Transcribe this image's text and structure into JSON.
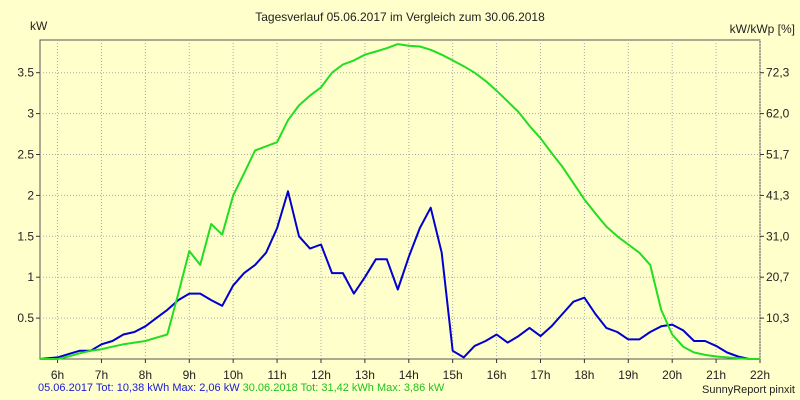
{
  "chart_data": {
    "type": "line",
    "title": "Tagesverlauf 05.06.2017 im Vergleich zum 30.06.2018",
    "ylabel": "kW",
    "ylabel_right": "kW/kWp [%]",
    "x_tick_labels": [
      "6h",
      "7h",
      "8h",
      "9h",
      "10h",
      "11h",
      "12h",
      "13h",
      "14h",
      "15h",
      "16h",
      "17h",
      "18h",
      "19h",
      "20h",
      "21h",
      "22h"
    ],
    "x_ticks": [
      6,
      7,
      8,
      9,
      10,
      11,
      12,
      13,
      14,
      15,
      16,
      17,
      18,
      19,
      20,
      21,
      22
    ],
    "xlim": [
      5.6,
      22.0
    ],
    "ylim": [
      0,
      3.9
    ],
    "y_ticks": [
      0.5,
      1,
      1.5,
      2,
      2.5,
      3,
      3.5
    ],
    "y_tick_labels": [
      "0.5",
      "1",
      "1.5",
      "2",
      "2.5",
      "3",
      "3.5"
    ],
    "y_ticks_right": [
      0.5,
      1,
      1.5,
      2,
      2.5,
      3,
      3.5
    ],
    "y_tick_labels_right": [
      "10,3",
      "20,7",
      "31,0",
      "41,3",
      "51,7",
      "62,0",
      "72,3"
    ],
    "grid": true,
    "series": [
      {
        "color": "#0000d0",
        "x": [
          5.6,
          6.0,
          6.25,
          6.5,
          6.75,
          7.0,
          7.25,
          7.5,
          7.75,
          8.0,
          8.25,
          8.5,
          8.75,
          9.0,
          9.25,
          9.5,
          9.75,
          10.0,
          10.25,
          10.5,
          10.75,
          11.0,
          11.25,
          11.5,
          11.75,
          12.0,
          12.25,
          12.5,
          12.75,
          13.0,
          13.25,
          13.5,
          13.75,
          14.0,
          14.25,
          14.5,
          14.75,
          15.0,
          15.25,
          15.5,
          15.75,
          16.0,
          16.25,
          16.5,
          16.75,
          17.0,
          17.25,
          17.5,
          17.75,
          18.0,
          18.25,
          18.5,
          18.75,
          19.0,
          19.25,
          19.5,
          19.75,
          20.0,
          20.25,
          20.5,
          20.75,
          21.0,
          21.25,
          21.5,
          21.75,
          22.0
        ],
        "values": [
          0.0,
          0.02,
          0.06,
          0.1,
          0.1,
          0.18,
          0.22,
          0.3,
          0.33,
          0.4,
          0.5,
          0.6,
          0.72,
          0.8,
          0.8,
          0.72,
          0.65,
          0.9,
          1.05,
          1.15,
          1.3,
          1.6,
          2.05,
          1.5,
          1.35,
          1.4,
          1.05,
          1.05,
          0.8,
          1.0,
          1.22,
          1.22,
          0.85,
          1.25,
          1.6,
          1.85,
          1.3,
          0.1,
          0.02,
          0.16,
          0.22,
          0.3,
          0.2,
          0.28,
          0.38,
          0.28,
          0.4,
          0.55,
          0.7,
          0.75,
          0.55,
          0.38,
          0.33,
          0.24,
          0.24,
          0.33,
          0.4,
          0.42,
          0.35,
          0.22,
          0.22,
          0.16,
          0.08,
          0.03,
          0.0,
          0.0
        ]
      },
      {
        "color": "#22dd22",
        "x": [
          5.6,
          6.0,
          6.25,
          6.5,
          6.75,
          7.0,
          7.25,
          7.5,
          7.75,
          8.0,
          8.25,
          8.5,
          8.75,
          9.0,
          9.25,
          9.5,
          9.75,
          10.0,
          10.25,
          10.5,
          10.75,
          11.0,
          11.25,
          11.5,
          11.75,
          12.0,
          12.25,
          12.5,
          12.75,
          13.0,
          13.25,
          13.5,
          13.75,
          14.0,
          14.25,
          14.5,
          14.75,
          15.0,
          15.25,
          15.5,
          15.75,
          16.0,
          16.25,
          16.5,
          16.75,
          17.0,
          17.25,
          17.5,
          17.75,
          18.0,
          18.25,
          18.5,
          18.75,
          19.0,
          19.25,
          19.5,
          19.75,
          20.0,
          20.25,
          20.5,
          20.75,
          21.0,
          21.25,
          21.5,
          21.75,
          22.0
        ],
        "values": [
          0.0,
          0.0,
          0.03,
          0.07,
          0.1,
          0.12,
          0.15,
          0.18,
          0.2,
          0.22,
          0.26,
          0.3,
          0.8,
          1.32,
          1.15,
          1.65,
          1.52,
          2.0,
          2.27,
          2.55,
          2.6,
          2.65,
          2.92,
          3.1,
          3.22,
          3.32,
          3.5,
          3.6,
          3.65,
          3.72,
          3.76,
          3.8,
          3.85,
          3.83,
          3.82,
          3.78,
          3.72,
          3.65,
          3.58,
          3.5,
          3.4,
          3.28,
          3.15,
          3.02,
          2.85,
          2.7,
          2.52,
          2.35,
          2.15,
          1.95,
          1.78,
          1.62,
          1.5,
          1.4,
          1.3,
          1.15,
          0.6,
          0.3,
          0.15,
          0.08,
          0.05,
          0.03,
          0.02,
          0.01,
          0.0,
          0.0
        ]
      }
    ]
  },
  "footer": {
    "series_a_summary": "05.06.2017 Tot: 10,38 kWh Max: 2,06 kW",
    "series_b_summary": "30.06.2018 Tot: 31,42 kWh Max: 3,86 kW",
    "credit": "SunnyReport pinxit"
  }
}
